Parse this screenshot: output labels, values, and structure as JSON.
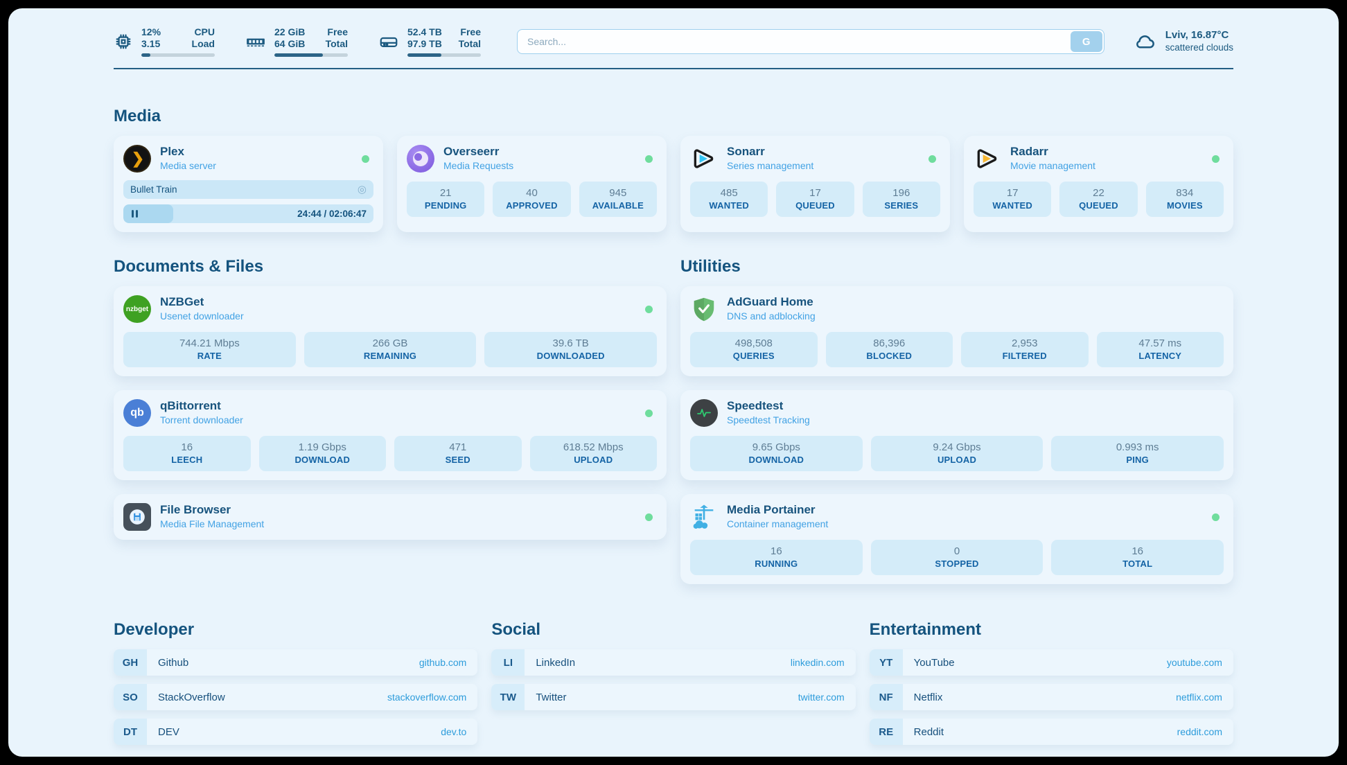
{
  "page": {
    "bg_color": "#e9f4fc",
    "frame_color": "#000000",
    "accent_dark": "#14537e",
    "accent_blue": "#2d9cdb",
    "status_green": "#6fdd9d"
  },
  "topbar": {
    "cpu": {
      "icon": "cpu-icon",
      "value_top": "12%",
      "value_bottom": "3.15",
      "label_top": "CPU",
      "label_bottom": "Load",
      "progress_pct": 12
    },
    "ram": {
      "icon": "ram-icon",
      "value_top": "22 GiB",
      "value_bottom": "64 GiB",
      "label_top": "Free",
      "label_bottom": "Total",
      "progress_pct": 66
    },
    "disk": {
      "icon": "disk-icon",
      "value_top": "52.4 TB",
      "value_bottom": "97.9 TB",
      "label_top": "Free",
      "label_bottom": "Total",
      "progress_pct": 46
    },
    "search": {
      "placeholder": "Search...",
      "button_label": "G"
    },
    "weather": {
      "icon": "cloud-icon",
      "line1": "Lviv, 16.87°C",
      "line2": "scattered clouds"
    }
  },
  "sections": {
    "media": {
      "title": "Media"
    },
    "documents": {
      "title": "Documents & Files"
    },
    "utilities": {
      "title": "Utilities"
    },
    "developer": {
      "title": "Developer"
    },
    "social": {
      "title": "Social"
    },
    "entertainment": {
      "title": "Entertainment"
    }
  },
  "services": {
    "plex": {
      "title": "Plex",
      "subtitle": "Media server",
      "status": "online",
      "now_playing": {
        "title": "Bullet Train",
        "time_display": "24:44 / 02:06:47",
        "progress_pct": 20,
        "state": "paused"
      }
    },
    "overseerr": {
      "title": "Overseerr",
      "subtitle": "Media Requests",
      "status": "online",
      "stats": [
        {
          "value": "21",
          "label": "PENDING"
        },
        {
          "value": "40",
          "label": "APPROVED"
        },
        {
          "value": "945",
          "label": "AVAILABLE"
        }
      ]
    },
    "sonarr": {
      "title": "Sonarr",
      "subtitle": "Series management",
      "status": "online",
      "stats": [
        {
          "value": "485",
          "label": "WANTED"
        },
        {
          "value": "17",
          "label": "QUEUED"
        },
        {
          "value": "196",
          "label": "SERIES"
        }
      ]
    },
    "radarr": {
      "title": "Radarr",
      "subtitle": "Movie management",
      "status": "online",
      "stats": [
        {
          "value": "17",
          "label": "WANTED"
        },
        {
          "value": "22",
          "label": "QUEUED"
        },
        {
          "value": "834",
          "label": "MOVIES"
        }
      ]
    },
    "nzbget": {
      "title": "NZBGet",
      "subtitle": "Usenet downloader",
      "status": "online",
      "logo_text": "nzbget",
      "stats": [
        {
          "value": "744.21 Mbps",
          "label": "RATE"
        },
        {
          "value": "266 GB",
          "label": "REMAINING"
        },
        {
          "value": "39.6 TB",
          "label": "DOWNLOADED"
        }
      ]
    },
    "qbittorrent": {
      "title": "qBittorrent",
      "subtitle": "Torrent downloader",
      "status": "online",
      "logo_text": "qb",
      "stats": [
        {
          "value": "16",
          "label": "LEECH"
        },
        {
          "value": "1.19 Gbps",
          "label": "DOWNLOAD"
        },
        {
          "value": "471",
          "label": "SEED"
        },
        {
          "value": "618.52 Mbps",
          "label": "UPLOAD"
        }
      ]
    },
    "filebrowser": {
      "title": "File Browser",
      "subtitle": "Media File Management",
      "status": "online",
      "stats": []
    },
    "adguard": {
      "title": "AdGuard Home",
      "subtitle": "DNS and adblocking",
      "status": "none",
      "stats": [
        {
          "value": "498,508",
          "label": "QUERIES"
        },
        {
          "value": "86,396",
          "label": "BLOCKED"
        },
        {
          "value": "2,953",
          "label": "FILTERED"
        },
        {
          "value": "47.57 ms",
          "label": "LATENCY"
        }
      ]
    },
    "speedtest": {
      "title": "Speedtest",
      "subtitle": "Speedtest Tracking",
      "status": "none",
      "stats": [
        {
          "value": "9.65 Gbps",
          "label": "DOWNLOAD"
        },
        {
          "value": "9.24 Gbps",
          "label": "UPLOAD"
        },
        {
          "value": "0.993 ms",
          "label": "PING"
        }
      ]
    },
    "portainer": {
      "title": "Media Portainer",
      "subtitle": "Container management",
      "status": "online",
      "stats": [
        {
          "value": "16",
          "label": "RUNNING"
        },
        {
          "value": "0",
          "label": "STOPPED"
        },
        {
          "value": "16",
          "label": "TOTAL"
        }
      ]
    }
  },
  "links": {
    "developer": [
      {
        "abbr": "GH",
        "name": "Github",
        "url": "github.com"
      },
      {
        "abbr": "SO",
        "name": "StackOverflow",
        "url": "stackoverflow.com"
      },
      {
        "abbr": "DT",
        "name": "DEV",
        "url": "dev.to"
      }
    ],
    "social": [
      {
        "abbr": "LI",
        "name": "LinkedIn",
        "url": "linkedin.com"
      },
      {
        "abbr": "TW",
        "name": "Twitter",
        "url": "twitter.com"
      }
    ],
    "entertainment": [
      {
        "abbr": "YT",
        "name": "YouTube",
        "url": "youtube.com"
      },
      {
        "abbr": "NF",
        "name": "Netflix",
        "url": "netflix.com"
      },
      {
        "abbr": "RE",
        "name": "Reddit",
        "url": "reddit.com"
      }
    ]
  }
}
